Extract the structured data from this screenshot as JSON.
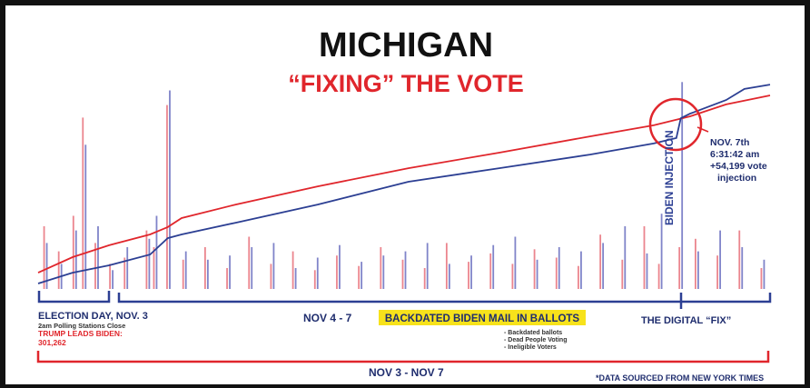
{
  "chart_data": [
    {
      "type": "line",
      "title": "MICHIGAN",
      "subtitle": "“FIXING” THE VOTE",
      "xlim": [
        0,
        100
      ],
      "ylim": [
        0,
        100
      ],
      "series": [
        {
          "name": "Trump",
          "color": "#e0262c",
          "x": [
            0,
            4.7,
            9.7,
            15.3,
            17.7,
            19.6,
            27,
            38.2,
            50.6,
            63,
            75.4,
            84.1,
            89.1,
            94,
            100
          ],
          "values": [
            7.8,
            15.2,
            20.9,
            26.1,
            29.6,
            33.9,
            40.4,
            49.1,
            57.8,
            65.2,
            73,
            78.3,
            82.6,
            88.3,
            92.6
          ]
        },
        {
          "name": "Biden",
          "color": "#2c3f93",
          "x": [
            0,
            4.7,
            9.7,
            15.3,
            17.7,
            19.6,
            27,
            38.2,
            50.6,
            63,
            75.4,
            84.1,
            87.2,
            87.8,
            89.1,
            94,
            96.5,
            100
          ],
          "values": [
            2.6,
            7.8,
            11.3,
            16.5,
            24.3,
            26.1,
            31.7,
            40.4,
            51.3,
            57.8,
            64.3,
            69.6,
            72.2,
            81.7,
            83.9,
            90.4,
            95.7,
            97.8
          ]
        }
      ],
      "annotations": {
        "injection": "BIDEN INJECTION",
        "note": [
          "NOV. 7th",
          "6:31:42 am",
          "+54,199 vote",
          "injection"
        ],
        "election_day": "ELECTION DAY, NOV. 3",
        "polling": "2am Polling Stations Close",
        "trump_leads": "TRUMP LEADS BIDEN:",
        "lead": "301,262",
        "nov4_7": "NOV 4 - 7",
        "backdated": "BACKDATED BIDEN MAIL IN BALLOTS",
        "bullets": [
          "- Backdated ballots",
          "- Dead People Voting",
          "- Ineligible Voters"
        ],
        "digital_fix": "THE DIGITAL “FIX”",
        "range": "NOV 3 - NOV 7",
        "source": "*DATA SOURCED FROM NEW YORK TIMES"
      }
    },
    {
      "type": "bar",
      "xlim": [
        0,
        100
      ],
      "ylim": [
        0,
        100
      ],
      "x": [
        1,
        3,
        5,
        6.3,
        8,
        10,
        12,
        15,
        16,
        17.8,
        20,
        23,
        26,
        29,
        32,
        35,
        38,
        41,
        44,
        47,
        50,
        53,
        56,
        59,
        62,
        65,
        68,
        71,
        74,
        77,
        80,
        83,
        85,
        87.8,
        90,
        93,
        96,
        99
      ],
      "series": [
        {
          "name": "Trump",
          "color": "#e8707a",
          "values": [
            30,
            18,
            35,
            82,
            22,
            12,
            15,
            28,
            20,
            88,
            14,
            20,
            10,
            25,
            12,
            18,
            9,
            16,
            11,
            20,
            14,
            10,
            22,
            13,
            17,
            12,
            19,
            15,
            11,
            26,
            14,
            30,
            12,
            20,
            24,
            16,
            28,
            10
          ]
        },
        {
          "name": "Biden",
          "color": "#6a6fc0",
          "values": [
            22,
            12,
            28,
            69,
            30,
            9,
            20,
            24,
            35,
            95,
            18,
            14,
            16,
            20,
            22,
            10,
            15,
            21,
            13,
            16,
            18,
            22,
            12,
            16,
            21,
            25,
            14,
            20,
            18,
            22,
            30,
            17,
            36,
            99,
            18,
            28,
            20,
            14
          ]
        }
      ]
    }
  ]
}
